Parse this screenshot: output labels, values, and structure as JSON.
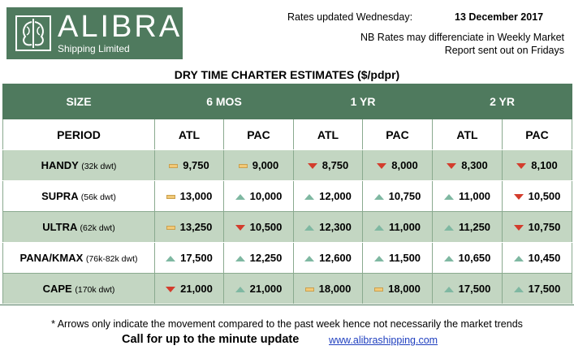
{
  "logo": {
    "name": "ALIBRA",
    "subtitle": "Shipping Limited",
    "emblem_icon": "alibra-emblem-icon"
  },
  "header": {
    "updated_label": "Rates updated Wednesday:",
    "updated_date": "13 December 2017",
    "nb_line": "NB Rates may differenciate in Weekly Market",
    "report_line": "Report sent out on Fridays"
  },
  "title": "DRY TIME CHARTER ESTIMATES ($/pdpr)",
  "columns": {
    "size": "SIZE",
    "period": "PERIOD",
    "groups": [
      "6 MOS",
      "1 YR",
      "2 YR"
    ],
    "sub": [
      "ATL",
      "PAC",
      "ATL",
      "PAC",
      "ATL",
      "PAC"
    ]
  },
  "rows": [
    {
      "name": "HANDY",
      "dwt": "(32k dwt)",
      "cells": [
        {
          "v": "9,750",
          "t": "flat"
        },
        {
          "v": "9,000",
          "t": "flat"
        },
        {
          "v": "8,750",
          "t": "down"
        },
        {
          "v": "8,000",
          "t": "down"
        },
        {
          "v": "8,300",
          "t": "down"
        },
        {
          "v": "8,100",
          "t": "down"
        }
      ]
    },
    {
      "name": "SUPRA",
      "dwt": "(56k dwt)",
      "cells": [
        {
          "v": "13,000",
          "t": "flat"
        },
        {
          "v": "10,000",
          "t": "up"
        },
        {
          "v": "12,000",
          "t": "up"
        },
        {
          "v": "10,750",
          "t": "up"
        },
        {
          "v": "11,000",
          "t": "up"
        },
        {
          "v": "10,500",
          "t": "down"
        }
      ]
    },
    {
      "name": "ULTRA",
      "dwt": "(62k dwt)",
      "cells": [
        {
          "v": "13,250",
          "t": "flat"
        },
        {
          "v": "10,500",
          "t": "down"
        },
        {
          "v": "12,300",
          "t": "up"
        },
        {
          "v": "11,000",
          "t": "up"
        },
        {
          "v": "11,250",
          "t": "up"
        },
        {
          "v": "10,750",
          "t": "down"
        }
      ]
    },
    {
      "name": "PANA/KMAX",
      "dwt": "(76k-82k dwt)",
      "cells": [
        {
          "v": "17,500",
          "t": "up"
        },
        {
          "v": "12,250",
          "t": "up"
        },
        {
          "v": "12,600",
          "t": "up"
        },
        {
          "v": "11,500",
          "t": "up"
        },
        {
          "v": "10,650",
          "t": "up"
        },
        {
          "v": "10,450",
          "t": "up"
        }
      ]
    },
    {
      "name": "CAPE",
      "dwt": "(170k dwt)",
      "cells": [
        {
          "v": "21,000",
          "t": "down"
        },
        {
          "v": "21,000",
          "t": "up"
        },
        {
          "v": "18,000",
          "t": "flat"
        },
        {
          "v": "18,000",
          "t": "flat"
        },
        {
          "v": "17,500",
          "t": "up"
        },
        {
          "v": "17,500",
          "t": "up"
        }
      ]
    }
  ],
  "trend_colors": {
    "up": "#7fb8a2",
    "down": "#d33c2c",
    "flat": "#f2c977"
  },
  "footer": {
    "note": "* Arrows only indicate the movement compared to the past week hence not necessarily the market trends",
    "call": "Call for up to the minute update",
    "url": "www.alibrashipping.com"
  }
}
